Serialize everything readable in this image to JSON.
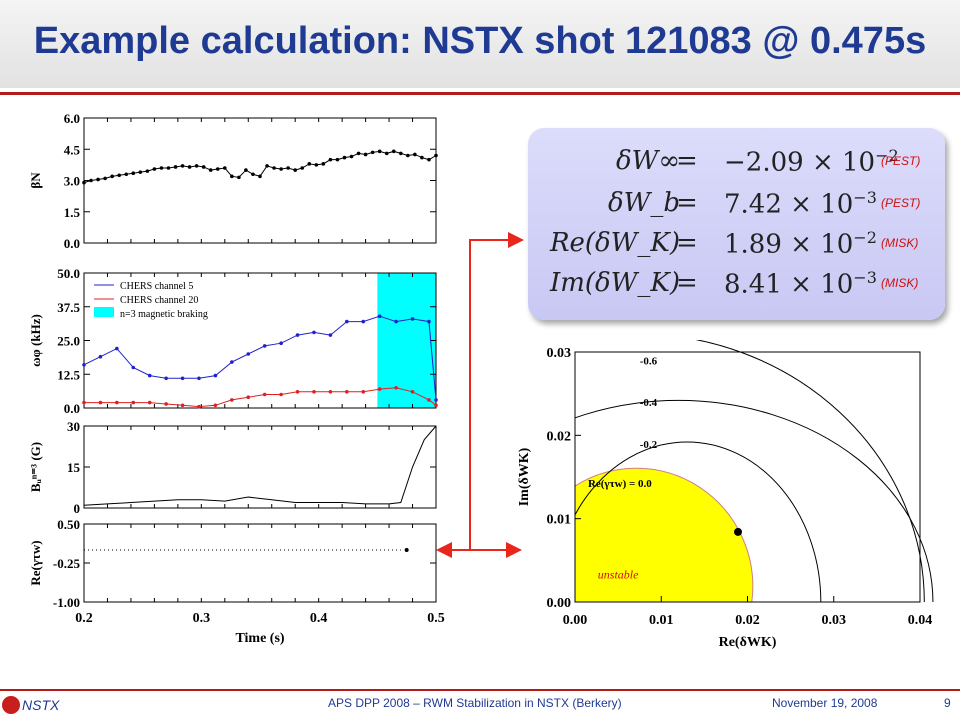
{
  "title": "Example calculation: NSTX shot 121083 @ 0.475s",
  "footer": {
    "org": "NSTX",
    "conference": "APS DPP 2008 – RWM Stabilization in NSTX (Berkery)",
    "date": "November 19, 2008",
    "page": "9"
  },
  "equations": [
    {
      "lhs": "δW∞",
      "sign": "=",
      "mantissa": "−2.09 × 10",
      "exp": "−2",
      "tag": "(PEST)"
    },
    {
      "lhs": "δW_b",
      "sign": "=",
      "mantissa": "7.42 × 10",
      "exp": "−3",
      "tag": "(PEST)"
    },
    {
      "lhs": "Re(δW_K)",
      "sign": "=",
      "mantissa": "1.89 × 10",
      "exp": "−2",
      "tag": "(MISK)"
    },
    {
      "lhs": "Im(δW_K)",
      "sign": "=",
      "mantissa": "8.41 × 10",
      "exp": "−3",
      "tag": "(MISK)"
    }
  ],
  "colors": {
    "title": "#1f3a93",
    "accent_line": "#b31b1b",
    "arrow": "#e8261c",
    "highlight": "#00ffff",
    "unstable": "#ffff00",
    "chers20": "#e02020",
    "chers5": "#2222cc"
  },
  "chart_data": [
    {
      "type": "line",
      "ylabel": "βN",
      "xlim": [
        0.2,
        0.5
      ],
      "ylim": [
        0,
        6
      ],
      "yticks": [
        "6.0",
        "4.5",
        "3.0",
        "1.5",
        "0.0"
      ],
      "series": [
        {
          "x": [
            0.2,
            0.206,
            0.212,
            0.218,
            0.224,
            0.23,
            0.236,
            0.242,
            0.248,
            0.254,
            0.26,
            0.266,
            0.272,
            0.278,
            0.284,
            0.29,
            0.296,
            0.302,
            0.308,
            0.314,
            0.32,
            0.326,
            0.332,
            0.338,
            0.344,
            0.35,
            0.356,
            0.362,
            0.368,
            0.374,
            0.38,
            0.386,
            0.392,
            0.398,
            0.404,
            0.41,
            0.416,
            0.422,
            0.428,
            0.434,
            0.44,
            0.446,
            0.452,
            0.458,
            0.464,
            0.47,
            0.476,
            0.482,
            0.488,
            0.494,
            0.5
          ],
          "y": [
            2.9,
            3.0,
            3.05,
            3.1,
            3.2,
            3.25,
            3.3,
            3.35,
            3.4,
            3.45,
            3.55,
            3.6,
            3.6,
            3.65,
            3.7,
            3.65,
            3.7,
            3.65,
            3.5,
            3.55,
            3.6,
            3.2,
            3.15,
            3.5,
            3.3,
            3.2,
            3.7,
            3.6,
            3.55,
            3.6,
            3.5,
            3.6,
            3.8,
            3.75,
            3.8,
            4.0,
            4.0,
            4.1,
            4.15,
            4.3,
            4.25,
            4.35,
            4.4,
            4.3,
            4.4,
            4.3,
            4.2,
            4.25,
            4.1,
            4.0,
            4.2
          ]
        }
      ]
    },
    {
      "type": "line",
      "ylabel": "ωφ (kHz)",
      "xlim": [
        0.2,
        0.5
      ],
      "ylim": [
        0,
        50
      ],
      "yticks": [
        "50.0",
        "37.5",
        "25.0",
        "12.5",
        "0.0"
      ],
      "shaded_region": {
        "x": [
          0.45,
          0.5
        ],
        "label": "n=3 magnetic braking"
      },
      "series": [
        {
          "name": "CHERS channel 5",
          "x": [
            0.2,
            0.214,
            0.228,
            0.242,
            0.256,
            0.27,
            0.284,
            0.298,
            0.312,
            0.326,
            0.34,
            0.354,
            0.368,
            0.382,
            0.396,
            0.41,
            0.424,
            0.438,
            0.452,
            0.466,
            0.48,
            0.494,
            0.5
          ],
          "y": [
            16,
            19,
            22,
            15,
            12,
            11,
            11,
            11,
            12,
            17,
            20,
            23,
            24,
            27,
            28,
            27,
            32,
            32,
            34,
            32,
            33,
            32,
            3
          ]
        },
        {
          "name": "CHERS channel 20",
          "x": [
            0.2,
            0.214,
            0.228,
            0.242,
            0.256,
            0.27,
            0.284,
            0.298,
            0.312,
            0.326,
            0.34,
            0.354,
            0.368,
            0.382,
            0.396,
            0.41,
            0.424,
            0.438,
            0.452,
            0.466,
            0.48,
            0.494,
            0.5
          ],
          "y": [
            2,
            2,
            2,
            2,
            2,
            1.5,
            1,
            0.5,
            1,
            3,
            4,
            5,
            5,
            6,
            6,
            6,
            6,
            6,
            7,
            7.5,
            6,
            3,
            1
          ]
        }
      ]
    },
    {
      "type": "line",
      "ylabel": "Bᵤⁿ⁼³ (G)",
      "xlim": [
        0.2,
        0.5
      ],
      "ylim": [
        0,
        30
      ],
      "yticks": [
        "30",
        "15",
        "0"
      ],
      "series": [
        {
          "x": [
            0.2,
            0.22,
            0.24,
            0.26,
            0.28,
            0.3,
            0.32,
            0.34,
            0.36,
            0.38,
            0.4,
            0.42,
            0.44,
            0.46,
            0.47,
            0.48,
            0.49,
            0.5
          ],
          "y": [
            1,
            1.5,
            2,
            2.5,
            3,
            3,
            2.5,
            4,
            3,
            2,
            2,
            2,
            1.5,
            1.5,
            2,
            15,
            25,
            30
          ]
        }
      ]
    },
    {
      "type": "scatter",
      "ylabel": "Re(γτw)",
      "xlabel": "Time (s)",
      "xlim": [
        0.2,
        0.5
      ],
      "ylim": [
        -1.0,
        0.5
      ],
      "yticks": [
        "0.50",
        "-0.25",
        "-1.00"
      ],
      "xticks": [
        "0.2",
        "0.3",
        "0.4",
        "0.5"
      ],
      "series": [
        {
          "x": [
            0.475
          ],
          "y": [
            0.0
          ]
        }
      ]
    },
    {
      "type": "scatter",
      "xlabel": "Re(δWK)",
      "ylabel": "Im(δWK)",
      "xlim": [
        0.0,
        0.04
      ],
      "ylim": [
        0.0,
        0.03
      ],
      "xticks": [
        "0.00",
        "0.01",
        "0.02",
        "0.03",
        "0.04"
      ],
      "yticks": [
        "0.03",
        "0.02",
        "0.01",
        "0.00"
      ],
      "contours": [
        "-0.6",
        "-0.4",
        "-0.2",
        "Re(γτw) = 0.0"
      ],
      "region_label": "unstable",
      "series": [
        {
          "x": [
            0.0189
          ],
          "y": [
            0.00841
          ]
        }
      ]
    }
  ]
}
